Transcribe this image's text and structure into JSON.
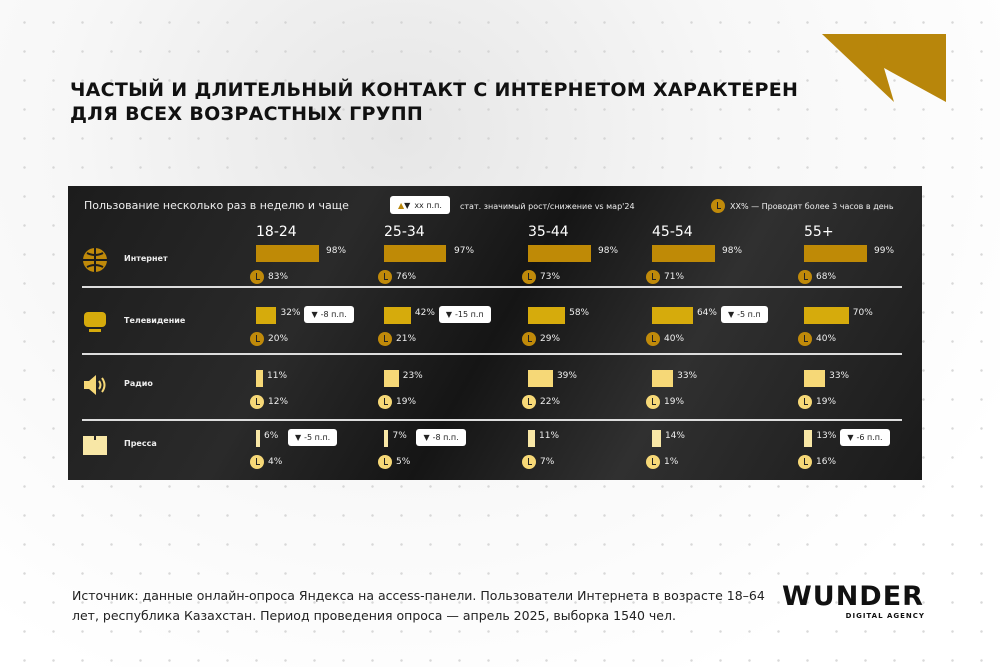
{
  "title": "ЧАСТЫЙ И ДЛИТЕЛЬНЫЙ КОНТАКТ  С ИНТЕРНЕТОМ ХАРАКТЕРЕН ДЛЯ ВСЕХ  ВОЗРАСТНЫХ ГРУПП",
  "colors": {
    "accent": "#b8860b",
    "internet": "#bf8a06",
    "tv": "#d6ab0c",
    "radio": "#f6d877",
    "press": "#f8e7a6"
  },
  "panel": {
    "subtitle": "Пользование несколько раз в неделю и чаще",
    "legend_change": {
      "icon": "up-down-triangles",
      "label": "хх п.п.",
      "text": "стат. значимый рост/снижение vs мар'24"
    },
    "legend_time": {
      "icon": "clock-icon",
      "text": "XX% — Проводят более 3 часов в день"
    },
    "ages": [
      "18-24",
      "25-34",
      "35-44",
      "45-54",
      "55+"
    ],
    "rows": [
      {
        "label": "Интернет",
        "icon": "globe-icon",
        "usage": [
          "98%",
          "97%",
          "98%",
          "98%",
          "99%"
        ],
        "usage_values": [
          98,
          97,
          98,
          98,
          99
        ],
        "hours": [
          "83%",
          "76%",
          "73%",
          "71%",
          "68%"
        ],
        "changes": [
          null,
          null,
          null,
          null,
          null
        ]
      },
      {
        "label": "Телевидение",
        "icon": "tv-icon",
        "usage": [
          "32%",
          "42%",
          "58%",
          "64%",
          "70%"
        ],
        "usage_values": [
          32,
          42,
          58,
          64,
          70
        ],
        "hours": [
          "20%",
          "21%",
          "29%",
          "40%",
          "40%"
        ],
        "changes": [
          "-8 п.п.",
          "-15 п.п",
          null,
          "-5 п.п",
          null
        ]
      },
      {
        "label": "Радио",
        "icon": "speaker-icon",
        "usage": [
          "11%",
          "23%",
          "39%",
          "33%",
          "33%"
        ],
        "usage_values": [
          11,
          23,
          39,
          33,
          33
        ],
        "hours": [
          "12%",
          "19%",
          "22%",
          "19%",
          "19%"
        ],
        "changes": [
          null,
          null,
          null,
          null,
          null
        ]
      },
      {
        "label": "Пресса",
        "icon": "book-icon",
        "usage": [
          "6%",
          "7%",
          "11%",
          "14%",
          "13%"
        ],
        "usage_values": [
          6,
          7,
          11,
          14,
          13
        ],
        "hours": [
          "4%",
          "5%",
          "7%",
          "1%",
          "16%"
        ],
        "changes": [
          "-5 п.п.",
          "-8 п.п.",
          null,
          null,
          "-6 п.п."
        ]
      }
    ]
  },
  "footer": "Источник: данные онлайн-опроса Яндекса на access-панели. Пользователи Интернета в возрасте 18–64 лет, республика Казахстан. Период проведения опроса —  апрель 2025, выборка 1540 чел.",
  "logo": {
    "name": "WUNDER",
    "tagline": "DIGITAL AGENCY"
  }
}
